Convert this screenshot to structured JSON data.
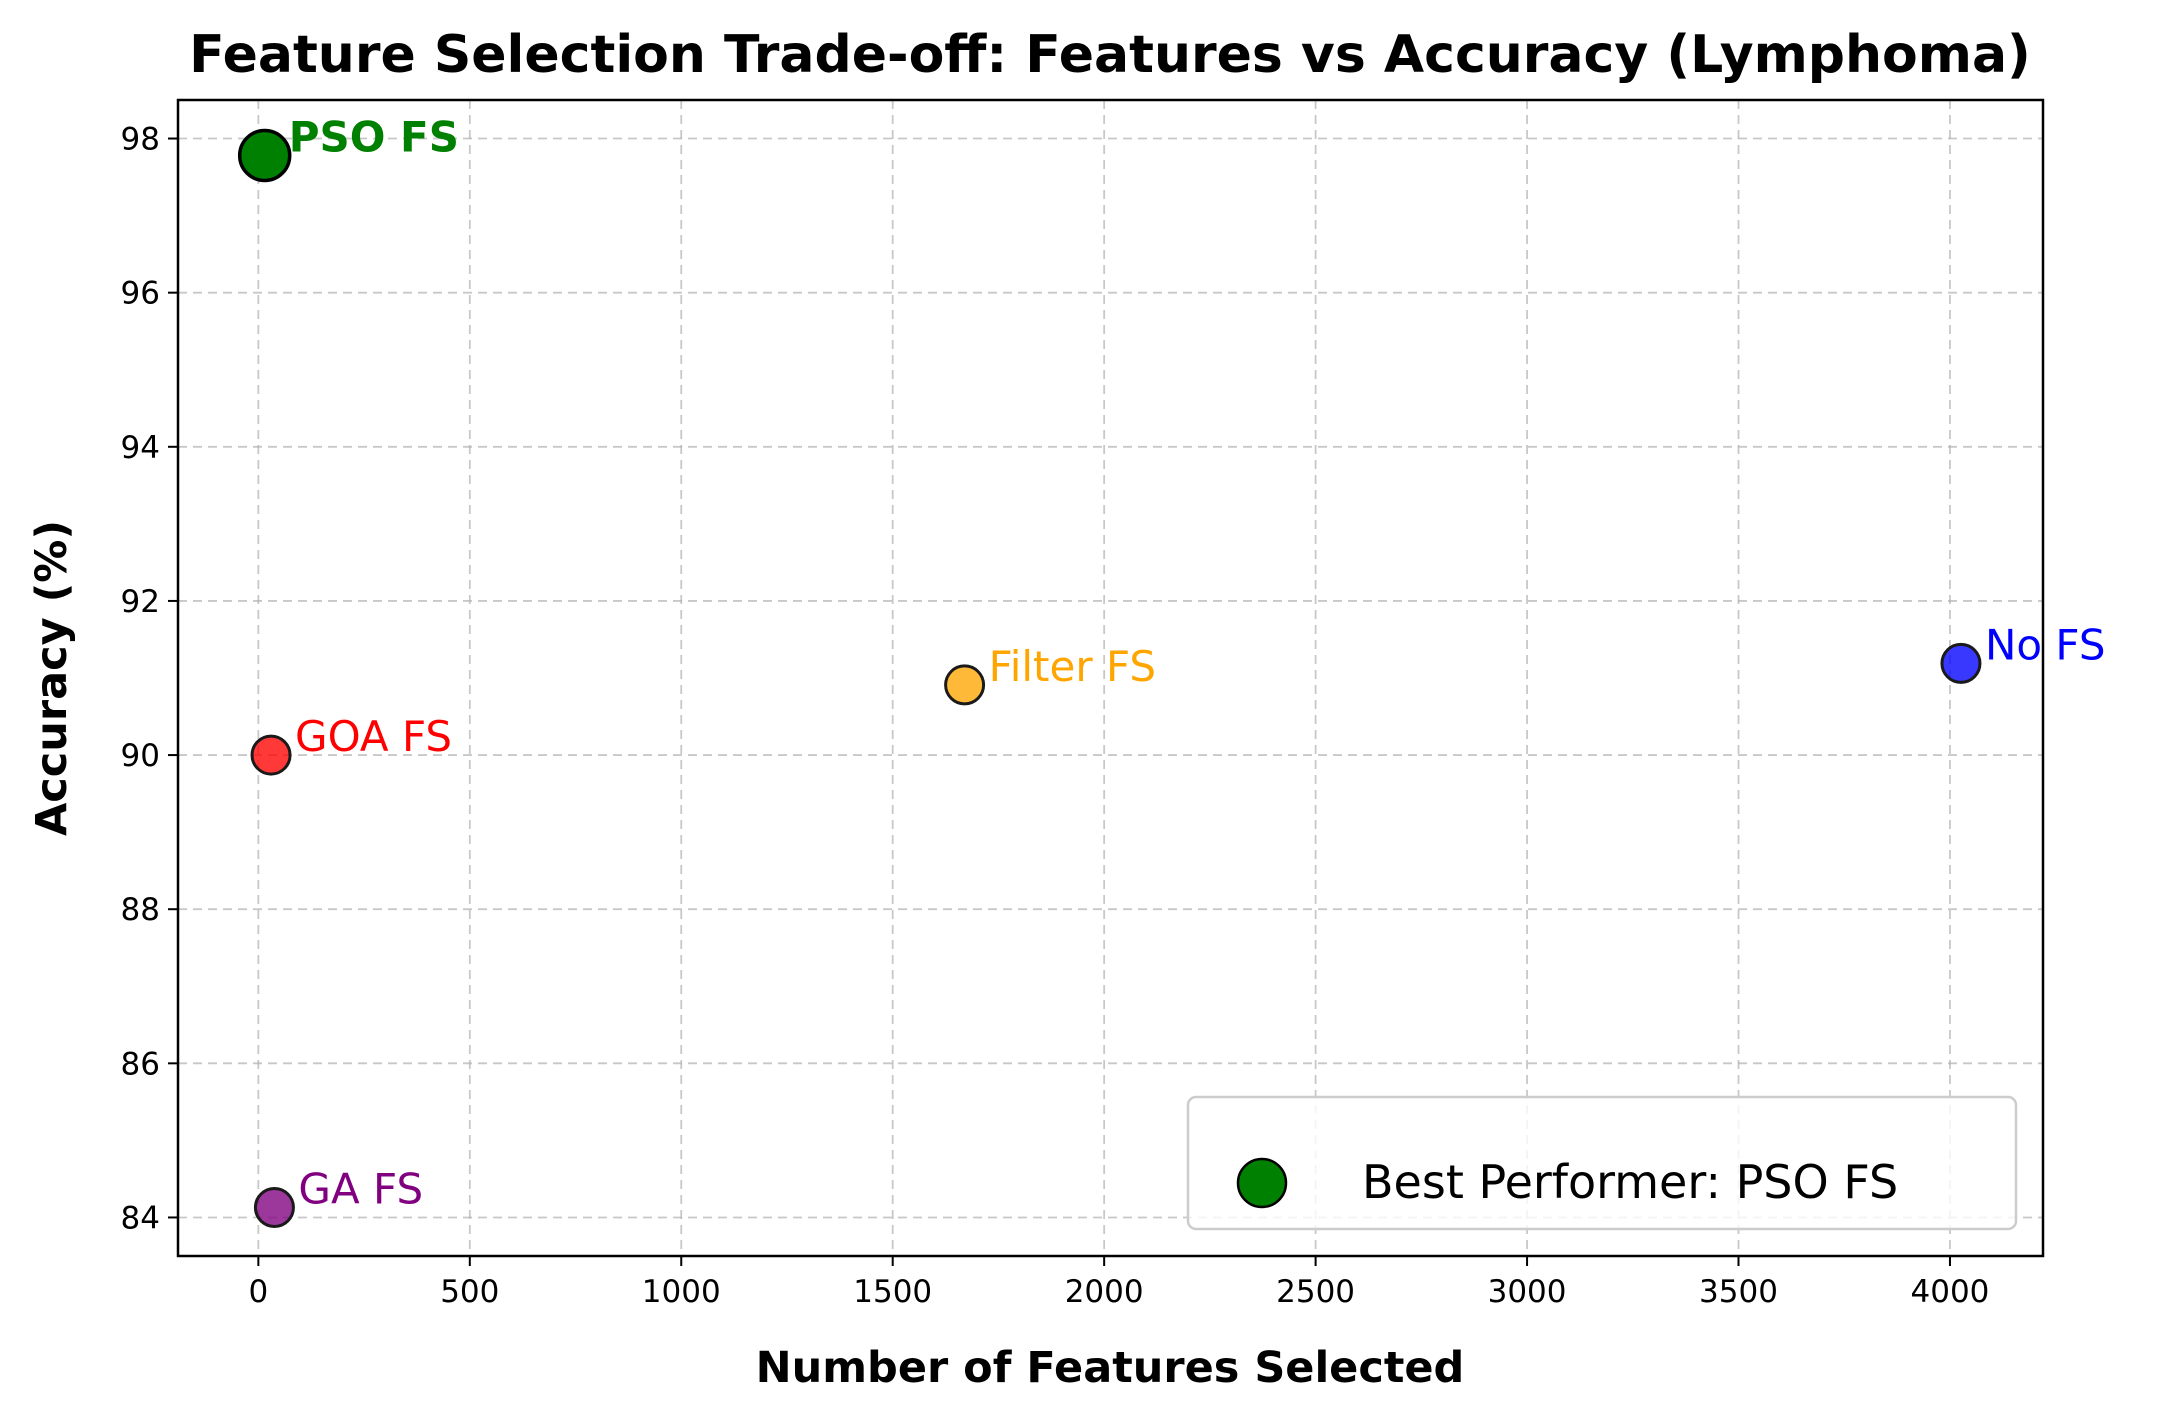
{
  "chart_data": {
    "type": "scatter",
    "title": "Feature Selection Trade-off: Features vs Accuracy (Lymphoma)",
    "xlabel": "Number of Features Selected",
    "ylabel": "Accuracy (%)",
    "xlim": [
      -190,
      4220
    ],
    "ylim": [
      83.5,
      98.5
    ],
    "xticks": [
      0,
      500,
      1000,
      1500,
      2000,
      2500,
      3000,
      3500,
      4000
    ],
    "yticks": [
      84,
      86,
      88,
      90,
      92,
      94,
      96,
      98
    ],
    "grid": true,
    "points": [
      {
        "label": "PSO FS",
        "x": 15,
        "y": 97.78,
        "color": "#008000",
        "edge": "#000000",
        "best": true
      },
      {
        "label": "GOA FS",
        "x": 30,
        "y": 90.0,
        "color": "#ff0000",
        "edge": "#1a1a1a",
        "best": false
      },
      {
        "label": "GA FS",
        "x": 38,
        "y": 84.13,
        "color": "#800080",
        "edge": "#1a1a1a",
        "best": false
      },
      {
        "label": "Filter FS",
        "x": 1670,
        "y": 90.91,
        "color": "#ffa500",
        "edge": "#1a1a1a",
        "best": false
      },
      {
        "label": "No FS",
        "x": 4026,
        "y": 91.19,
        "color": "#0000ff",
        "edge": "#1a1a1a",
        "best": false
      }
    ],
    "legend": {
      "position": "lower-right",
      "entries": [
        {
          "label": "Best Performer: PSO FS",
          "color": "#008000"
        }
      ]
    }
  }
}
